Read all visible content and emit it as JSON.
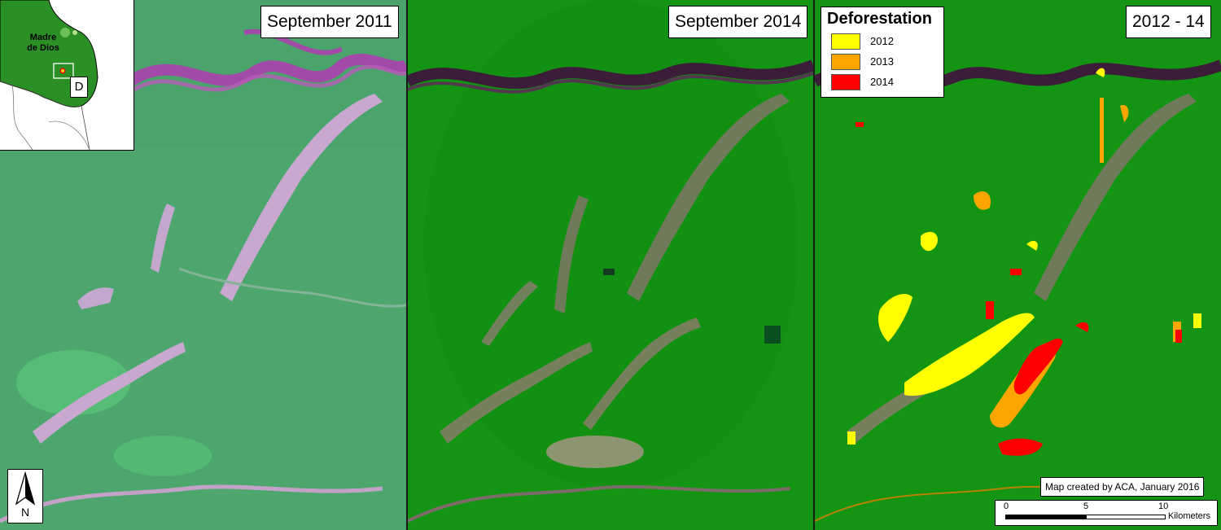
{
  "panels": [
    {
      "title": "September 2011"
    },
    {
      "title": "September 2014"
    },
    {
      "title": "2012 - 14"
    }
  ],
  "inset_map": {
    "region_label": "Madre de Dios",
    "region_label_line1": "Madre",
    "region_label_line2": "de Dios",
    "marker_label": "D"
  },
  "north_arrow": {
    "label": "N"
  },
  "legend": {
    "title": "Deforestation",
    "items": [
      {
        "label": "2012",
        "color": "#ffff00"
      },
      {
        "label": "2013",
        "color": "#ffa500"
      },
      {
        "label": "2014",
        "color": "#ff0000"
      }
    ]
  },
  "credit": "Map created by ACA, January 2016",
  "scale_bar": {
    "ticks": [
      "0",
      "5",
      "10"
    ],
    "unit": "Kilometers"
  },
  "colors": {
    "forest_2011": "#4fa86e",
    "forest_2014": "#139413",
    "cleared_2011": "#c7a6cc",
    "cleared_2014": "#6f7a5a",
    "river_2011": "#a24aa8",
    "river_2014": "#3b1d3a"
  }
}
